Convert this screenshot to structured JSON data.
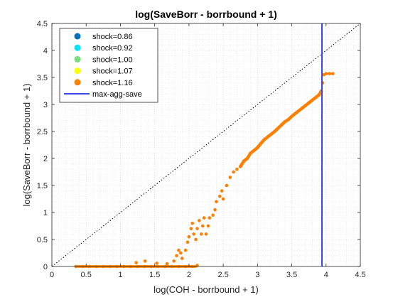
{
  "chart_data": {
    "type": "scatter",
    "title": "log(SaveBorr - borrbound + 1)",
    "xlabel": "log(COH - borrbound + 1)",
    "ylabel": "log(SaveBorr - borrbound + 1)",
    "xlim": [
      0,
      4.5
    ],
    "ylim": [
      0,
      4.5
    ],
    "x_ticks": [
      "0",
      "0.5",
      "1",
      "1.5",
      "2",
      "2.5",
      "3",
      "3.5",
      "4",
      "4.5"
    ],
    "y_ticks": [
      "0",
      "0.5",
      "1",
      "1.5",
      "2",
      "2.5",
      "3",
      "3.5",
      "4",
      "4.5"
    ],
    "grid": "minor-dotted",
    "legend_position": "top-left",
    "series": [
      {
        "name": "shock=0.86",
        "color": "#0072BD",
        "points": []
      },
      {
        "name": "shock=0.92",
        "color": "#00E5FF",
        "points": []
      },
      {
        "name": "shock=1.00",
        "color": "#77E07A",
        "points": []
      },
      {
        "name": "shock=1.07",
        "color": "#FFFF00",
        "points": []
      },
      {
        "name": "shock=1.16",
        "color": "#FF7F00",
        "points": [
          [
            0.35,
            0.0
          ],
          [
            0.45,
            0.0
          ],
          [
            0.55,
            0.0
          ],
          [
            0.65,
            0.0
          ],
          [
            0.75,
            0.0
          ],
          [
            0.85,
            0.0
          ],
          [
            0.95,
            0.0
          ],
          [
            1.05,
            0.0
          ],
          [
            1.15,
            0.0
          ],
          [
            1.25,
            0.0
          ],
          [
            1.35,
            0.0
          ],
          [
            1.45,
            0.0
          ],
          [
            1.55,
            0.0
          ],
          [
            1.65,
            0.0
          ],
          [
            1.75,
            0.0
          ],
          [
            1.85,
            0.0
          ],
          [
            1.95,
            0.0
          ],
          [
            2.05,
            0.0
          ],
          [
            2.12,
            0.02
          ],
          [
            1.23,
            0.07
          ],
          [
            1.36,
            0.1
          ],
          [
            1.53,
            0.06
          ],
          [
            1.68,
            0.05
          ],
          [
            1.78,
            0.1
          ],
          [
            1.82,
            0.2
          ],
          [
            1.85,
            0.3
          ],
          [
            1.88,
            0.25
          ],
          [
            1.9,
            0.15
          ],
          [
            1.95,
            0.3
          ],
          [
            1.98,
            0.45
          ],
          [
            2.0,
            0.55
          ],
          [
            2.03,
            0.7
          ],
          [
            2.05,
            0.8
          ],
          [
            2.07,
            0.6
          ],
          [
            2.1,
            0.5
          ],
          [
            2.12,
            0.7
          ],
          [
            2.15,
            0.85
          ],
          [
            2.18,
            0.6
          ],
          [
            2.2,
            0.75
          ],
          [
            2.22,
            0.9
          ],
          [
            2.25,
            0.6
          ],
          [
            2.28,
            0.75
          ],
          [
            2.3,
            0.9
          ],
          [
            2.35,
            0.95
          ],
          [
            2.38,
            1.05
          ],
          [
            2.4,
            1.2
          ],
          [
            2.45,
            1.3
          ],
          [
            2.48,
            1.4
          ],
          [
            2.5,
            1.25
          ],
          [
            2.55,
            1.5
          ],
          [
            2.6,
            1.65
          ],
          [
            2.65,
            1.75
          ],
          [
            2.7,
            1.8
          ],
          [
            2.75,
            1.85
          ],
          [
            2.8,
            1.95
          ],
          [
            2.85,
            2.0
          ],
          [
            2.9,
            2.1
          ],
          [
            2.95,
            2.15
          ],
          [
            3.0,
            2.2
          ],
          [
            3.05,
            2.28
          ],
          [
            3.1,
            2.35
          ],
          [
            3.15,
            2.4
          ],
          [
            3.2,
            2.45
          ],
          [
            3.25,
            2.5
          ],
          [
            3.3,
            2.56
          ],
          [
            3.35,
            2.62
          ],
          [
            3.4,
            2.68
          ],
          [
            3.45,
            2.72
          ],
          [
            3.5,
            2.78
          ],
          [
            3.55,
            2.83
          ],
          [
            3.6,
            2.88
          ],
          [
            3.65,
            2.93
          ],
          [
            3.7,
            2.98
          ],
          [
            3.75,
            3.03
          ],
          [
            3.8,
            3.08
          ],
          [
            3.85,
            3.13
          ],
          [
            3.9,
            3.18
          ],
          [
            3.93,
            3.25
          ],
          [
            3.95,
            3.4
          ],
          [
            3.97,
            3.55
          ],
          [
            4.0,
            3.57
          ],
          [
            4.05,
            3.57
          ],
          [
            4.1,
            3.57
          ]
        ]
      }
    ],
    "reference_line": {
      "type": "diagonal",
      "style": "dotted",
      "color": "#000000"
    },
    "vertical_line": {
      "name": "max-agg-save",
      "x": 3.94,
      "color": "#3B47E6"
    }
  }
}
